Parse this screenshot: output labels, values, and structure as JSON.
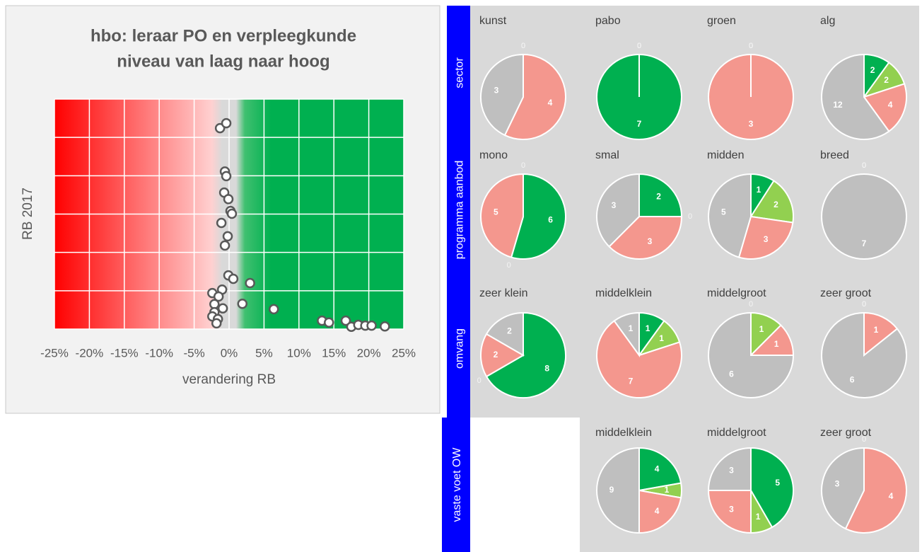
{
  "row_labels": [
    "sector",
    "programma aanbod",
    "omvang",
    "vaste voet OW"
  ],
  "chart_data": [
    {
      "type": "scatter",
      "title": [
        "hbo: leraar PO en verpleegkunde",
        "niveau van laag naar hoog"
      ],
      "x_label": "verandering RB",
      "y_label": "RB 2017",
      "xlim": [
        -25,
        25
      ],
      "xticks": [
        {
          "value": -25,
          "label": "-25%"
        },
        {
          "value": -20,
          "label": "-20%"
        },
        {
          "value": -15,
          "label": "-15%"
        },
        {
          "value": -10,
          "label": "-10%"
        },
        {
          "value": -5,
          "label": "-5%"
        },
        {
          "value": 0,
          "label": "0%"
        },
        {
          "value": 5,
          "label": "5%"
        },
        {
          "value": 10,
          "label": "10%"
        },
        {
          "value": 15,
          "label": "15%"
        },
        {
          "value": 20,
          "label": "20%"
        },
        {
          "value": 25,
          "label": "25%"
        }
      ],
      "ylim": [
        0,
        6
      ],
      "yticks": [
        0,
        1,
        2,
        3,
        4,
        5,
        6
      ],
      "grid": true,
      "x": [
        -1.3,
        -0.4,
        -0.6,
        -0.4,
        -0.7,
        -0.1,
        0.2,
        0.4,
        -1.1,
        -0.2,
        -0.6,
        -0.1,
        0.6,
        3.0,
        -1.0,
        -2.4,
        -1.5,
        1.9,
        6.4,
        -2.1,
        -0.9,
        -2.1,
        -2.4,
        -1.6,
        -1.8,
        13.3,
        14.3,
        16.7,
        17.5,
        18.5,
        19.5,
        20.4,
        22.3
      ],
      "values": [
        5.24,
        5.37,
        4.11,
        3.99,
        3.56,
        3.39,
        3.08,
        3.01,
        2.77,
        2.42,
        2.18,
        1.4,
        1.31,
        1.2,
        1.03,
        0.94,
        0.85,
        0.66,
        0.52,
        0.65,
        0.54,
        0.44,
        0.33,
        0.26,
        0.15,
        0.22,
        0.17,
        0.22,
        0.06,
        0.11,
        0.09,
        0.09,
        0.07
      ],
      "color": "#ffffff"
    },
    {
      "type": "pie",
      "title": "kunst",
      "values": [
        0,
        0,
        4,
        3
      ],
      "colors": [
        "#00b050",
        "#92d050",
        "#f4978e",
        "#bfbfbf"
      ]
    },
    {
      "type": "pie",
      "title": "pabo",
      "values": [
        7,
        0,
        0,
        0
      ],
      "colors": [
        "#00b050",
        "#92d050",
        "#f4978e",
        "#bfbfbf"
      ]
    },
    {
      "type": "pie",
      "title": "groen",
      "values": [
        0,
        0,
        3,
        0
      ],
      "colors": [
        "#00b050",
        "#92d050",
        "#f4978e",
        "#bfbfbf"
      ]
    },
    {
      "type": "pie",
      "title": "alg",
      "values": [
        2,
        2,
        4,
        12
      ],
      "colors": [
        "#00b050",
        "#92d050",
        "#f4978e",
        "#bfbfbf"
      ]
    },
    {
      "type": "pie",
      "title": "mono",
      "values": [
        6,
        0,
        5,
        0
      ],
      "colors": [
        "#00b050",
        "#92d050",
        "#f4978e",
        "#bfbfbf"
      ]
    },
    {
      "type": "pie",
      "title": "smal",
      "values": [
        2,
        0,
        3,
        3
      ],
      "colors": [
        "#00b050",
        "#92d050",
        "#f4978e",
        "#bfbfbf"
      ]
    },
    {
      "type": "pie",
      "title": "midden",
      "values": [
        1,
        2,
        3,
        5
      ],
      "colors": [
        "#00b050",
        "#92d050",
        "#f4978e",
        "#bfbfbf"
      ]
    },
    {
      "type": "pie",
      "title": "breed",
      "values": [
        0,
        0,
        0,
        7
      ],
      "colors": [
        "#00b050",
        "#92d050",
        "#f4978e",
        "#bfbfbf"
      ]
    },
    {
      "type": "pie",
      "title": "zeer klein",
      "values": [
        8,
        0,
        2,
        2
      ],
      "colors": [
        "#00b050",
        "#92d050",
        "#f4978e",
        "#bfbfbf"
      ]
    },
    {
      "type": "pie",
      "title": "middelklein",
      "values": [
        1,
        1,
        7,
        1
      ],
      "colors": [
        "#00b050",
        "#92d050",
        "#f4978e",
        "#bfbfbf"
      ]
    },
    {
      "type": "pie",
      "title": "middelgroot",
      "values": [
        0,
        1,
        1,
        6
      ],
      "colors": [
        "#00b050",
        "#92d050",
        "#f4978e",
        "#bfbfbf"
      ]
    },
    {
      "type": "pie",
      "title": "zeer groot",
      "values": [
        0,
        0,
        1,
        6
      ],
      "colors": [
        "#00b050",
        "#92d050",
        "#f4978e",
        "#bfbfbf"
      ]
    },
    {
      "type": "pie",
      "title": "middelklein",
      "values": [
        4,
        1,
        4,
        9
      ],
      "colors": [
        "#00b050",
        "#92d050",
        "#f4978e",
        "#bfbfbf"
      ]
    },
    {
      "type": "pie",
      "title": "middelgroot",
      "values": [
        5,
        1,
        3,
        3
      ],
      "colors": [
        "#00b050",
        "#92d050",
        "#f4978e",
        "#bfbfbf"
      ]
    },
    {
      "type": "pie",
      "title": "zeer groot",
      "values": [
        0,
        0,
        4,
        3
      ],
      "colors": [
        "#00b050",
        "#92d050",
        "#f4978e",
        "#bfbfbf"
      ]
    }
  ]
}
